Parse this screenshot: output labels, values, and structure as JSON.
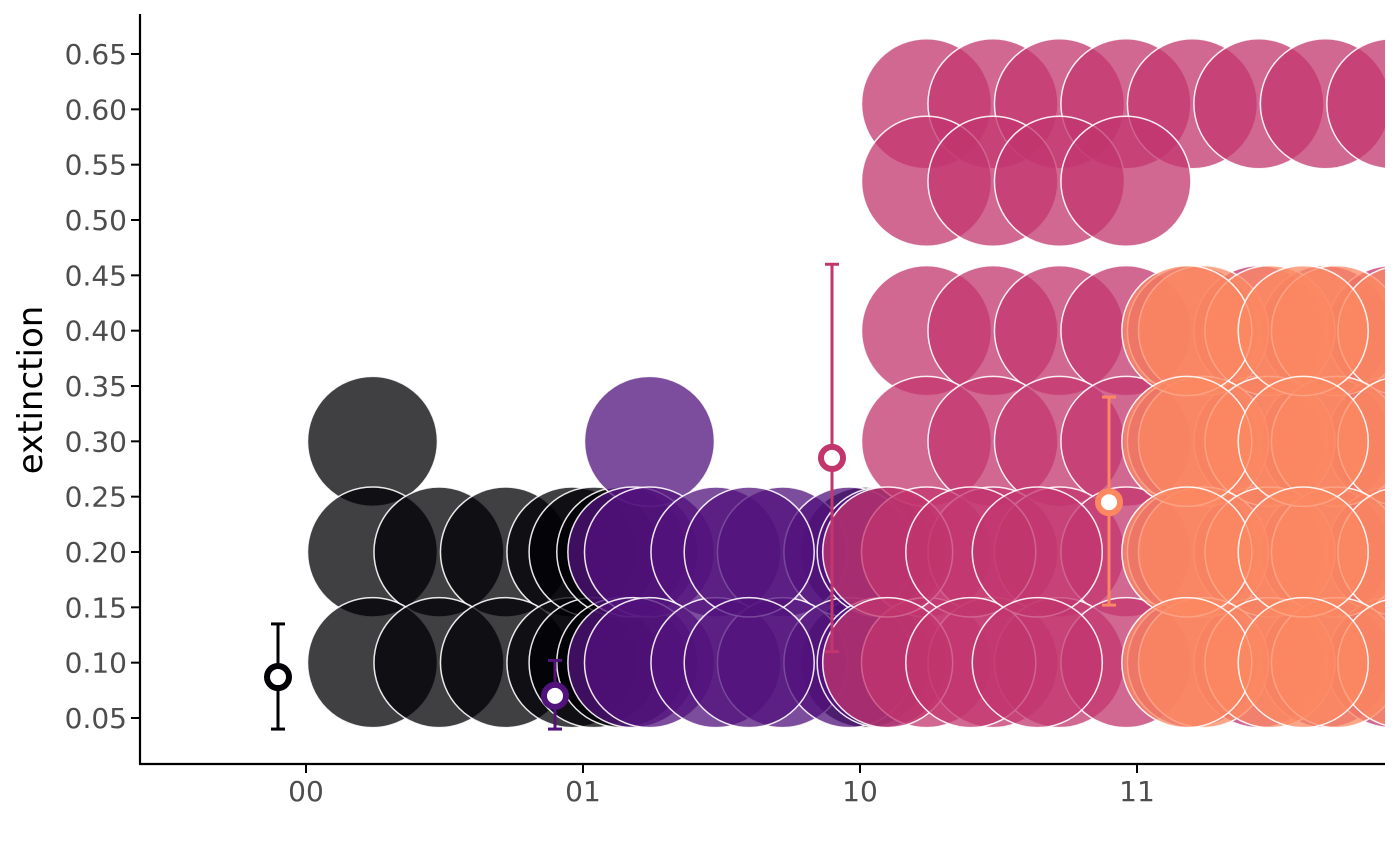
{
  "chart_data": {
    "type": "scatter",
    "title": "",
    "xlabel": "",
    "ylabel": "extinction",
    "x_categories": [
      "00",
      "01",
      "10",
      "11"
    ],
    "y_ticks": [
      "0.05",
      "0.10",
      "0.15",
      "0.20",
      "0.25",
      "0.30",
      "0.35",
      "0.40",
      "0.45",
      "0.50",
      "0.55",
      "0.60",
      "0.65"
    ],
    "ylim": [
      0.02,
      0.68
    ],
    "grid": false,
    "legend": "none",
    "colors": {
      "00": "#000004",
      "01": "#51127c",
      "10": "#c2366d",
      "11": "#fb8861"
    },
    "series": [
      {
        "group": "00",
        "points": [
          {
            "x": 0.24,
            "y": 0.3
          },
          {
            "x": 0.24,
            "y": 0.2
          },
          {
            "x": 0.48,
            "y": 0.2
          },
          {
            "x": 0.72,
            "y": 0.2
          },
          {
            "x": 0.96,
            "y": 0.2
          },
          {
            "x": 0.24,
            "y": 0.1
          },
          {
            "x": 0.48,
            "y": 0.1
          },
          {
            "x": 0.72,
            "y": 0.1
          },
          {
            "x": 0.96,
            "y": 0.1
          },
          {
            "x": 1.04,
            "y": 0.2
          },
          {
            "x": 1.04,
            "y": 0.1
          },
          {
            "x": 1.14,
            "y": 0.2
          },
          {
            "x": 1.14,
            "y": 0.1
          },
          {
            "x": 2.02,
            "y": 0.2
          },
          {
            "x": 2.02,
            "y": 0.1
          }
        ],
        "mean": 0.087,
        "ci": [
          0.04,
          0.135
        ]
      },
      {
        "group": "01",
        "points": [
          {
            "x": 1.24,
            "y": 0.3
          },
          {
            "x": 1.18,
            "y": 0.2
          },
          {
            "x": 1.24,
            "y": 0.2
          },
          {
            "x": 1.48,
            "y": 0.2
          },
          {
            "x": 1.72,
            "y": 0.2
          },
          {
            "x": 1.96,
            "y": 0.2
          },
          {
            "x": 1.18,
            "y": 0.1
          },
          {
            "x": 1.24,
            "y": 0.1
          },
          {
            "x": 1.48,
            "y": 0.1
          },
          {
            "x": 1.72,
            "y": 0.1
          },
          {
            "x": 1.96,
            "y": 0.1
          },
          {
            "x": 2.08,
            "y": 0.2
          },
          {
            "x": 2.08,
            "y": 0.1
          },
          {
            "x": 1.6,
            "y": 0.2
          },
          {
            "x": 1.6,
            "y": 0.1
          }
        ],
        "mean": 0.07,
        "ci": [
          0.04,
          0.102
        ]
      },
      {
        "group": "10",
        "points": [
          {
            "x": 2.24,
            "y": 0.605
          },
          {
            "x": 2.48,
            "y": 0.605
          },
          {
            "x": 2.72,
            "y": 0.605
          },
          {
            "x": 2.96,
            "y": 0.605
          },
          {
            "x": 3.2,
            "y": 0.605
          },
          {
            "x": 3.44,
            "y": 0.605
          },
          {
            "x": 3.68,
            "y": 0.605
          },
          {
            "x": 3.92,
            "y": 0.605
          },
          {
            "x": 2.24,
            "y": 0.535
          },
          {
            "x": 2.48,
            "y": 0.535
          },
          {
            "x": 2.72,
            "y": 0.535
          },
          {
            "x": 2.96,
            "y": 0.535
          },
          {
            "x": 2.24,
            "y": 0.4
          },
          {
            "x": 2.48,
            "y": 0.4
          },
          {
            "x": 2.72,
            "y": 0.4
          },
          {
            "x": 2.96,
            "y": 0.4
          },
          {
            "x": 3.2,
            "y": 0.4
          },
          {
            "x": 3.44,
            "y": 0.4
          },
          {
            "x": 3.68,
            "y": 0.4
          },
          {
            "x": 3.92,
            "y": 0.4
          },
          {
            "x": 2.24,
            "y": 0.3
          },
          {
            "x": 2.48,
            "y": 0.3
          },
          {
            "x": 2.72,
            "y": 0.3
          },
          {
            "x": 2.96,
            "y": 0.3
          },
          {
            "x": 3.2,
            "y": 0.3
          },
          {
            "x": 3.44,
            "y": 0.3
          },
          {
            "x": 3.68,
            "y": 0.3
          },
          {
            "x": 3.92,
            "y": 0.3
          },
          {
            "x": 2.24,
            "y": 0.2
          },
          {
            "x": 2.48,
            "y": 0.2
          },
          {
            "x": 2.72,
            "y": 0.2
          },
          {
            "x": 2.96,
            "y": 0.2
          },
          {
            "x": 3.2,
            "y": 0.2
          },
          {
            "x": 3.44,
            "y": 0.2
          },
          {
            "x": 3.68,
            "y": 0.2
          },
          {
            "x": 3.92,
            "y": 0.2
          },
          {
            "x": 2.24,
            "y": 0.1
          },
          {
            "x": 2.48,
            "y": 0.1
          },
          {
            "x": 2.72,
            "y": 0.1
          },
          {
            "x": 2.96,
            "y": 0.1
          },
          {
            "x": 3.2,
            "y": 0.1
          },
          {
            "x": 3.44,
            "y": 0.1
          },
          {
            "x": 3.68,
            "y": 0.1
          },
          {
            "x": 3.92,
            "y": 0.1
          },
          {
            "x": 2.1,
            "y": 0.2
          },
          {
            "x": 2.1,
            "y": 0.1
          },
          {
            "x": 2.4,
            "y": 0.2
          },
          {
            "x": 2.4,
            "y": 0.1
          },
          {
            "x": 2.64,
            "y": 0.2
          },
          {
            "x": 2.64,
            "y": 0.1
          }
        ],
        "mean": 0.285,
        "ci": [
          0.11,
          0.46
        ]
      },
      {
        "group": "11",
        "points": [
          {
            "x": 3.24,
            "y": 0.4
          },
          {
            "x": 3.48,
            "y": 0.4
          },
          {
            "x": 3.72,
            "y": 0.4
          },
          {
            "x": 3.96,
            "y": 0.4
          },
          {
            "x": 3.24,
            "y": 0.3
          },
          {
            "x": 3.48,
            "y": 0.3
          },
          {
            "x": 3.72,
            "y": 0.3
          },
          {
            "x": 3.96,
            "y": 0.3
          },
          {
            "x": 3.24,
            "y": 0.2
          },
          {
            "x": 3.48,
            "y": 0.2
          },
          {
            "x": 3.72,
            "y": 0.2
          },
          {
            "x": 3.96,
            "y": 0.2
          },
          {
            "x": 3.24,
            "y": 0.1
          },
          {
            "x": 3.48,
            "y": 0.1
          },
          {
            "x": 3.72,
            "y": 0.1
          },
          {
            "x": 3.96,
            "y": 0.1
          },
          {
            "x": 3.18,
            "y": 0.4
          },
          {
            "x": 3.18,
            "y": 0.3
          },
          {
            "x": 3.18,
            "y": 0.2
          },
          {
            "x": 3.18,
            "y": 0.1
          },
          {
            "x": 3.6,
            "y": 0.4
          },
          {
            "x": 3.6,
            "y": 0.3
          },
          {
            "x": 3.6,
            "y": 0.2
          },
          {
            "x": 3.6,
            "y": 0.1
          }
        ],
        "mean": 0.245,
        "ci": [
          0.152,
          0.34
        ]
      }
    ]
  }
}
